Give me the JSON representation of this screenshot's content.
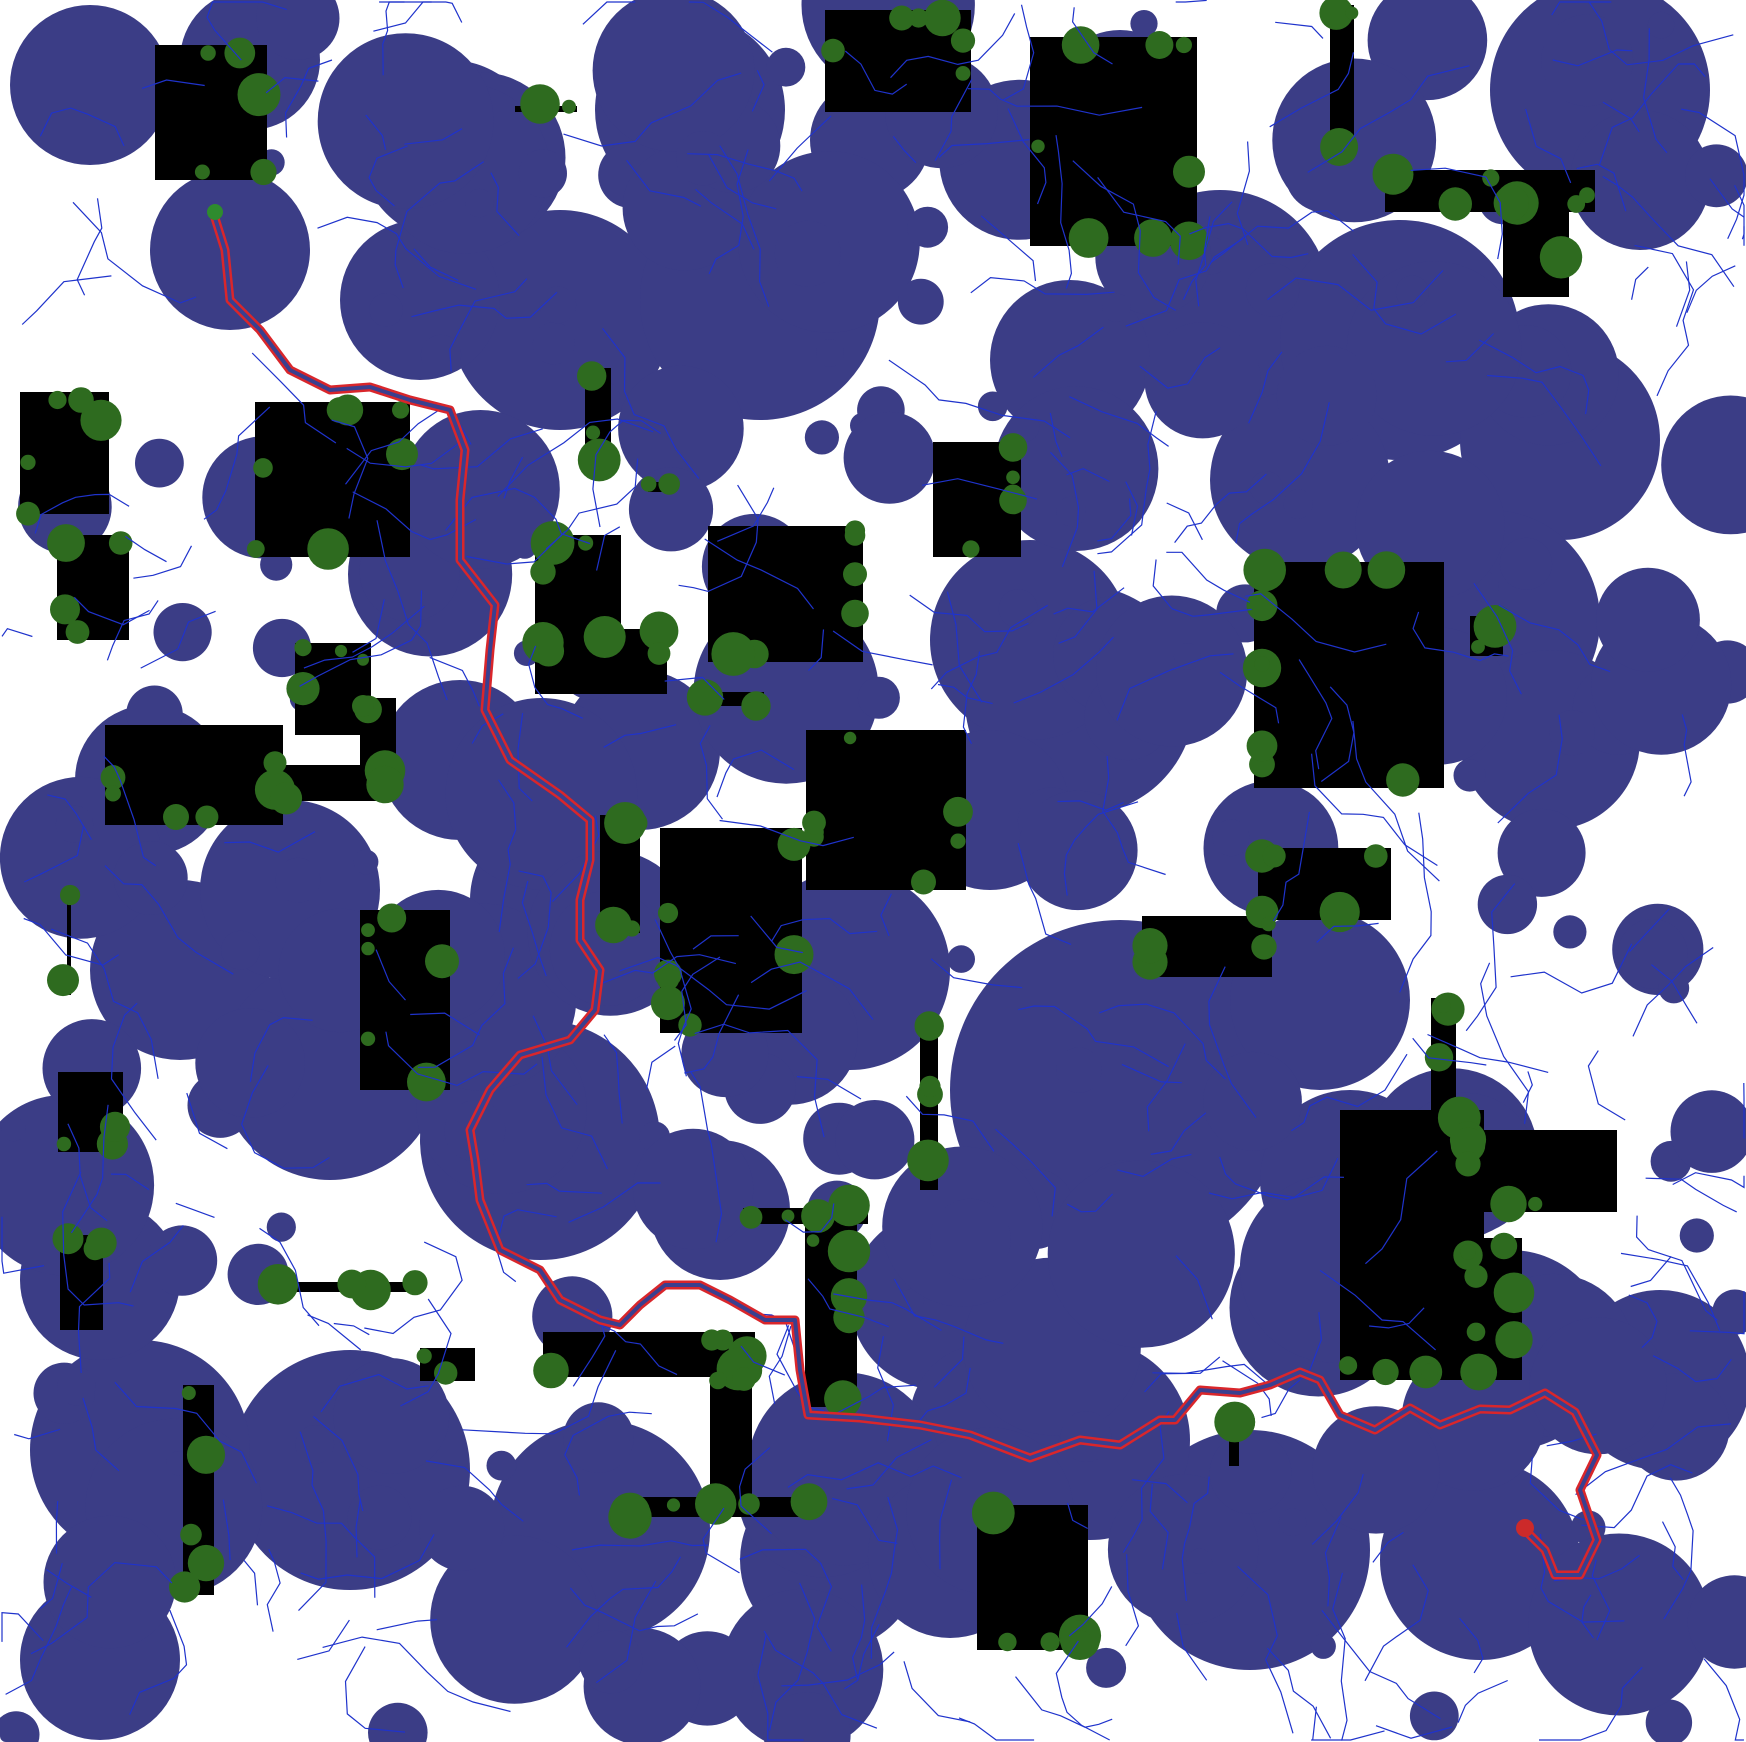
{
  "scene": {
    "kind": "rrt-path-planning-visualization",
    "colors": {
      "background": "#ffffff",
      "obstacle": "#000000",
      "obstacle_edge_blob": "#2e6b1f",
      "sample_ball_fill": "#3b3d86",
      "sample_ball_opacity": 0.48,
      "tree_edge": "#1f33cc",
      "path_outer": "#d9262b",
      "path_inner": "#3a3f8f",
      "start_marker": "#2e8b2e",
      "goal_marker": "#cc2a2a"
    },
    "ball_count_target": 260,
    "tree_edge_count_target": 1400,
    "start_marker": "start-icon",
    "goal_marker": "goal-icon"
  }
}
